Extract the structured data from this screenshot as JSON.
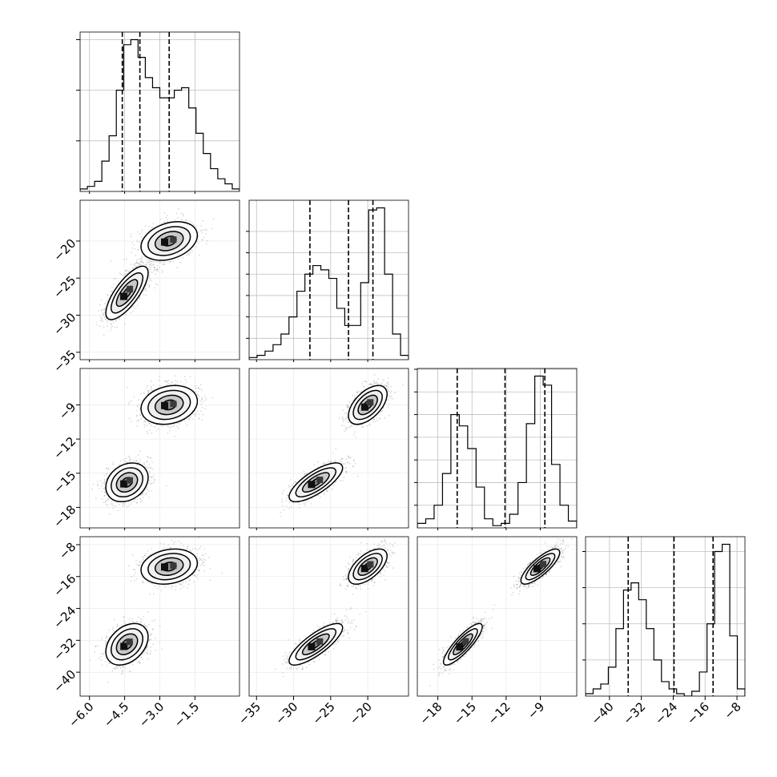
{
  "chart_data": {
    "type": "corner",
    "title": "",
    "grid": true,
    "params": [
      {
        "range": [
          -6.4,
          0.4
        ],
        "ticks": [
          -6.0,
          -4.5,
          -3.0,
          -1.5
        ],
        "tick_labels": [
          "−6.0",
          "−4.5",
          "−3.0",
          "−1.5"
        ],
        "quantiles": [
          -4.6,
          -3.85,
          -2.6
        ],
        "hist": [
          1,
          2,
          4,
          12,
          22,
          40,
          58,
          60,
          53,
          45,
          41,
          37,
          37,
          40,
          41,
          33,
          23,
          15,
          9,
          5,
          3,
          1
        ],
        "modes": [
          {
            "mean": -4.4,
            "sd": 0.45,
            "w": 0.5
          },
          {
            "mean": -2.6,
            "sd": 0.6,
            "w": 0.5
          }
        ]
      },
      {
        "range": [
          -36,
          -14.5
        ],
        "ticks": [
          -35,
          -30,
          -25,
          -20
        ],
        "tick_labels": [
          "−35",
          "−30",
          "−25",
          "−20"
        ],
        "quantiles": [
          -27.8,
          -22.6,
          -19.3
        ],
        "hist": [
          1,
          2,
          4,
          7,
          12,
          20,
          32,
          40,
          44,
          42,
          38,
          24,
          16,
          16,
          36,
          70,
          71,
          40,
          12,
          2
        ],
        "modes": [
          {
            "mean": -27,
            "sd": 1.8,
            "w": 0.5
          },
          {
            "mean": -20,
            "sd": 1.3,
            "w": 0.5
          }
        ]
      },
      {
        "range": [
          -19.8,
          -5.8
        ],
        "ticks": [
          -18,
          -15,
          -12,
          -9
        ],
        "tick_labels": [
          "−18",
          "−15",
          "−12",
          "−9"
        ],
        "quantiles": [
          -16.3,
          -12.1,
          -8.6
        ],
        "hist": [
          2,
          4,
          10,
          24,
          50,
          45,
          35,
          18,
          4,
          1,
          2,
          6,
          20,
          46,
          67,
          63,
          28,
          10,
          3
        ],
        "modes": [
          {
            "mean": -15.8,
            "sd": 0.85,
            "w": 0.5
          },
          {
            "mean": -9,
            "sd": 0.85,
            "w": 0.5
          }
        ]
      },
      {
        "range": [
          -46,
          -6
        ],
        "ticks": [
          -40,
          -32,
          -24,
          -16,
          -8
        ],
        "tick_labels": [
          "−40",
          "−32",
          "−24",
          "−16",
          "−8"
        ],
        "quantiles": [
          -35.3,
          -23.8,
          -14.0
        ],
        "hist": [
          1,
          3,
          5,
          12,
          28,
          44,
          47,
          40,
          28,
          15,
          6,
          3,
          1,
          0,
          2,
          10,
          30,
          60,
          63,
          25,
          3
        ],
        "modes": [
          {
            "mean": -33,
            "sd": 2.6,
            "w": 0.5
          },
          {
            "mean": -13.5,
            "sd": 2.2,
            "w": 0.5
          }
        ]
      }
    ],
    "hist_y_ticks": [
      [
        20,
        40,
        60
      ],
      [
        10,
        20,
        30,
        40,
        50,
        60
      ],
      [
        10,
        20,
        30,
        40,
        50,
        60,
        70
      ],
      [
        15,
        30,
        45,
        60
      ]
    ],
    "pairs": [
      {
        "row": 1,
        "col": 0,
        "clusters": [
          {
            "cx": -4.4,
            "cy": -27,
            "sx": 0.45,
            "sy": 1.8,
            "rho": 0.75,
            "w": 0.5
          },
          {
            "cx": -2.6,
            "cy": -20,
            "sx": 0.6,
            "sy": 1.3,
            "rho": 0.3,
            "w": 0.5
          }
        ],
        "bridge": true
      },
      {
        "row": 2,
        "col": 0,
        "clusters": [
          {
            "cx": -4.4,
            "cy": -15.8,
            "sx": 0.45,
            "sy": 0.85,
            "rho": 0.25,
            "w": 0.5
          },
          {
            "cx": -2.6,
            "cy": -9,
            "sx": 0.6,
            "sy": 0.85,
            "rho": 0.2,
            "w": 0.5
          }
        ]
      },
      {
        "row": 2,
        "col": 1,
        "clusters": [
          {
            "cx": -27,
            "cy": -15.8,
            "sx": 1.8,
            "sy": 0.85,
            "rho": 0.75,
            "w": 0.5
          },
          {
            "cx": -20,
            "cy": -9,
            "sx": 1.3,
            "sy": 0.85,
            "rho": 0.55,
            "w": 0.5
          }
        ]
      },
      {
        "row": 3,
        "col": 0,
        "clusters": [
          {
            "cx": -4.4,
            "cy": -33,
            "sx": 0.45,
            "sy": 2.6,
            "rho": 0.35,
            "w": 0.5
          },
          {
            "cx": -2.6,
            "cy": -13.5,
            "sx": 0.6,
            "sy": 2.2,
            "rho": 0.2,
            "w": 0.5
          }
        ]
      },
      {
        "row": 3,
        "col": 1,
        "clusters": [
          {
            "cx": -27,
            "cy": -33,
            "sx": 1.8,
            "sy": 2.6,
            "rho": 0.8,
            "w": 0.5
          },
          {
            "cx": -20,
            "cy": -13.5,
            "sx": 1.3,
            "sy": 2.2,
            "rho": 0.6,
            "w": 0.5
          }
        ]
      },
      {
        "row": 3,
        "col": 2,
        "clusters": [
          {
            "cx": -15.8,
            "cy": -33,
            "sx": 0.85,
            "sy": 2.6,
            "rho": 0.85,
            "w": 0.5
          },
          {
            "cx": -9,
            "cy": -13.5,
            "sx": 0.85,
            "sy": 2.2,
            "rho": 0.8,
            "w": 0.5
          }
        ]
      }
    ],
    "contour_levels_sigma": [
      0.5,
      1.0,
      1.5,
      2.0
    ]
  }
}
